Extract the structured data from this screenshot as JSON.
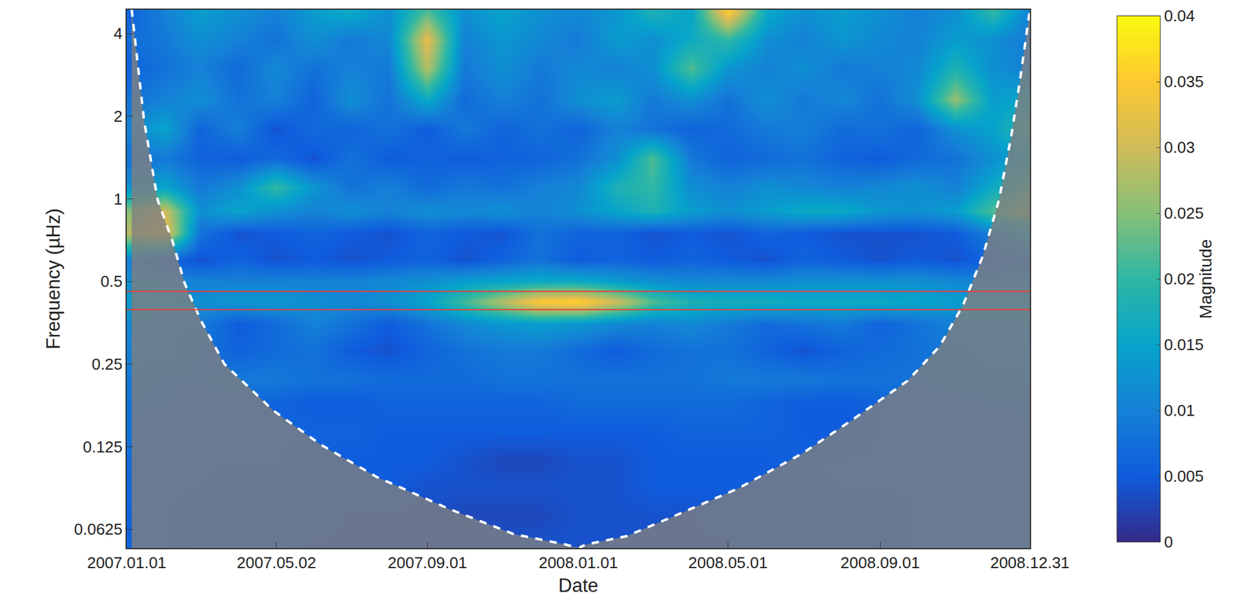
{
  "chart_data": {
    "type": "heatmap",
    "xlabel": "Date",
    "ylabel": "Frequency (µHz)",
    "log": "y",
    "grid": false,
    "xlim": [
      "2007-01-01",
      "2008-12-31"
    ],
    "xticks": [
      {
        "value": "2007-01-01",
        "label": "2007.01.01"
      },
      {
        "value": "2007-05-02",
        "label": "2007.05.02"
      },
      {
        "value": "2007-09-01",
        "label": "2007.09.01"
      },
      {
        "value": "2008-01-01",
        "label": "2008.01.01"
      },
      {
        "value": "2008-05-01",
        "label": "2008.05.01"
      },
      {
        "value": "2008-09-01",
        "label": "2008.09.01"
      },
      {
        "value": "2008-12-31",
        "label": "2008.12.31"
      }
    ],
    "ylim": [
      0.0534,
      4.89
    ],
    "yticks": [
      0.0625,
      0.125,
      0.25,
      0.5,
      1,
      2,
      4
    ],
    "colorbar": {
      "title": "Magnitude",
      "range": [
        0,
        0.04
      ],
      "ticks": [
        0,
        0.005,
        0.01,
        0.015,
        0.02,
        0.025,
        0.03,
        0.035,
        0.04
      ]
    },
    "x": [
      "2007-01-01",
      "2007-02-01",
      "2007-03-01",
      "2007-04-01",
      "2007-05-01",
      "2007-06-01",
      "2007-07-01",
      "2007-08-01",
      "2007-09-01",
      "2007-10-01",
      "2007-11-01",
      "2007-12-01",
      "2008-01-01",
      "2008-02-01",
      "2008-03-01",
      "2008-04-01",
      "2008-05-01",
      "2008-06-01",
      "2008-07-01",
      "2008-08-01",
      "2008-09-01",
      "2008-10-01",
      "2008-11-01",
      "2008-12-01",
      "2008-12-31"
    ],
    "y": [
      0.055,
      0.07,
      0.09,
      0.11,
      0.14,
      0.18,
      0.22,
      0.28,
      0.35,
      0.42,
      0.5,
      0.6,
      0.75,
      0.9,
      1.1,
      1.4,
      1.8,
      2.3,
      3,
      3.8,
      4.8
    ],
    "z": [
      [
        0.006,
        0.006,
        0.005,
        0.005,
        0.005,
        0.004,
        0.004,
        0.004,
        0.004,
        0.004,
        0.004,
        0.004,
        0.004,
        0.004,
        0.004,
        0.004,
        0.004,
        0.005,
        0.005,
        0.005,
        0.005,
        0.006,
        0.006,
        0.006,
        0.006
      ],
      [
        0.006,
        0.006,
        0.005,
        0.005,
        0.005,
        0.005,
        0.004,
        0.004,
        0.004,
        0.003,
        0.003,
        0.003,
        0.004,
        0.004,
        0.004,
        0.004,
        0.005,
        0.005,
        0.005,
        0.005,
        0.005,
        0.006,
        0.006,
        0.006,
        0.006
      ],
      [
        0.007,
        0.006,
        0.006,
        0.005,
        0.005,
        0.005,
        0.005,
        0.005,
        0.004,
        0.004,
        0.004,
        0.004,
        0.004,
        0.004,
        0.005,
        0.005,
        0.005,
        0.005,
        0.005,
        0.006,
        0.006,
        0.006,
        0.006,
        0.007,
        0.007
      ],
      [
        0.007,
        0.007,
        0.006,
        0.006,
        0.006,
        0.005,
        0.005,
        0.005,
        0.005,
        0.004,
        0.003,
        0.003,
        0.004,
        0.004,
        0.005,
        0.005,
        0.005,
        0.005,
        0.006,
        0.006,
        0.006,
        0.006,
        0.007,
        0.007,
        0.007
      ],
      [
        0.008,
        0.007,
        0.007,
        0.006,
        0.006,
        0.006,
        0.006,
        0.005,
        0.005,
        0.005,
        0.005,
        0.005,
        0.005,
        0.005,
        0.005,
        0.006,
        0.006,
        0.006,
        0.005,
        0.005,
        0.006,
        0.006,
        0.007,
        0.007,
        0.008
      ],
      [
        0.008,
        0.008,
        0.007,
        0.007,
        0.006,
        0.005,
        0.005,
        0.006,
        0.006,
        0.006,
        0.006,
        0.006,
        0.007,
        0.007,
        0.007,
        0.007,
        0.007,
        0.006,
        0.005,
        0.005,
        0.006,
        0.007,
        0.007,
        0.008,
        0.008
      ],
      [
        0.009,
        0.008,
        0.008,
        0.009,
        0.009,
        0.008,
        0.008,
        0.007,
        0.007,
        0.007,
        0.008,
        0.008,
        0.008,
        0.008,
        0.008,
        0.008,
        0.009,
        0.009,
        0.009,
        0.008,
        0.008,
        0.008,
        0.009,
        0.009,
        0.009
      ],
      [
        0.01,
        0.01,
        0.008,
        0.006,
        0.007,
        0.008,
        0.005,
        0.004,
        0.006,
        0.008,
        0.009,
        0.009,
        0.007,
        0.005,
        0.007,
        0.008,
        0.008,
        0.006,
        0.004,
        0.006,
        0.007,
        0.008,
        0.009,
        0.01,
        0.01
      ],
      [
        0.011,
        0.01,
        0.009,
        0.005,
        0.007,
        0.01,
        0.008,
        0.005,
        0.008,
        0.011,
        0.013,
        0.014,
        0.013,
        0.011,
        0.01,
        0.011,
        0.009,
        0.007,
        0.008,
        0.009,
        0.006,
        0.008,
        0.01,
        0.011,
        0.011
      ],
      [
        0.014,
        0.013,
        0.012,
        0.013,
        0.013,
        0.012,
        0.011,
        0.012,
        0.015,
        0.021,
        0.028,
        0.035,
        0.036,
        0.03,
        0.022,
        0.018,
        0.017,
        0.017,
        0.016,
        0.016,
        0.016,
        0.015,
        0.014,
        0.013,
        0.013
      ],
      [
        0.012,
        0.011,
        0.01,
        0.01,
        0.01,
        0.01,
        0.01,
        0.011,
        0.012,
        0.014,
        0.015,
        0.016,
        0.016,
        0.014,
        0.012,
        0.011,
        0.011,
        0.011,
        0.012,
        0.012,
        0.012,
        0.012,
        0.011,
        0.01,
        0.01
      ],
      [
        0.01,
        0.006,
        0.004,
        0.006,
        0.004,
        0.005,
        0.004,
        0.005,
        0.006,
        0.004,
        0.006,
        0.008,
        0.005,
        0.006,
        0.005,
        0.006,
        0.005,
        0.004,
        0.006,
        0.005,
        0.004,
        0.005,
        0.004,
        0.006,
        0.008
      ],
      [
        0.028,
        0.033,
        0.008,
        0.004,
        0.005,
        0.006,
        0.005,
        0.004,
        0.006,
        0.005,
        0.004,
        0.008,
        0.006,
        0.006,
        0.004,
        0.005,
        0.004,
        0.006,
        0.005,
        0.004,
        0.004,
        0.004,
        0.005,
        0.01,
        0.015
      ],
      [
        0.025,
        0.03,
        0.012,
        0.015,
        0.012,
        0.01,
        0.012,
        0.01,
        0.012,
        0.011,
        0.012,
        0.01,
        0.012,
        0.015,
        0.018,
        0.014,
        0.012,
        0.014,
        0.016,
        0.016,
        0.013,
        0.012,
        0.014,
        0.022,
        0.026
      ],
      [
        0.012,
        0.015,
        0.009,
        0.012,
        0.02,
        0.013,
        0.008,
        0.01,
        0.007,
        0.009,
        0.008,
        0.01,
        0.011,
        0.018,
        0.02,
        0.012,
        0.01,
        0.012,
        0.011,
        0.01,
        0.011,
        0.012,
        0.01,
        0.016,
        0.022
      ],
      [
        0.008,
        0.009,
        0.006,
        0.005,
        0.007,
        0.004,
        0.008,
        0.005,
        0.006,
        0.005,
        0.006,
        0.006,
        0.008,
        0.012,
        0.022,
        0.009,
        0.006,
        0.007,
        0.008,
        0.006,
        0.005,
        0.007,
        0.008,
        0.012,
        0.016
      ],
      [
        0.01,
        0.015,
        0.006,
        0.01,
        0.004,
        0.007,
        0.006,
        0.008,
        0.005,
        0.009,
        0.006,
        0.008,
        0.006,
        0.01,
        0.008,
        0.006,
        0.007,
        0.009,
        0.01,
        0.007,
        0.008,
        0.006,
        0.012,
        0.015,
        0.02
      ],
      [
        0.008,
        0.01,
        0.012,
        0.008,
        0.01,
        0.006,
        0.012,
        0.008,
        0.016,
        0.007,
        0.01,
        0.008,
        0.012,
        0.014,
        0.009,
        0.012,
        0.008,
        0.012,
        0.009,
        0.011,
        0.008,
        0.012,
        0.026,
        0.014,
        0.016
      ],
      [
        0.006,
        0.008,
        0.01,
        0.007,
        0.011,
        0.008,
        0.01,
        0.009,
        0.028,
        0.009,
        0.012,
        0.009,
        0.011,
        0.01,
        0.012,
        0.022,
        0.013,
        0.01,
        0.012,
        0.009,
        0.01,
        0.011,
        0.018,
        0.012,
        0.01
      ],
      [
        0.007,
        0.009,
        0.012,
        0.01,
        0.008,
        0.012,
        0.009,
        0.011,
        0.032,
        0.01,
        0.013,
        0.011,
        0.009,
        0.014,
        0.012,
        0.016,
        0.02,
        0.012,
        0.01,
        0.013,
        0.011,
        0.01,
        0.014,
        0.012,
        0.009
      ],
      [
        0.006,
        0.01,
        0.014,
        0.012,
        0.01,
        0.014,
        0.016,
        0.012,
        0.022,
        0.012,
        0.015,
        0.012,
        0.011,
        0.013,
        0.018,
        0.015,
        0.035,
        0.016,
        0.012,
        0.014,
        0.012,
        0.01,
        0.012,
        0.02,
        0.01
      ]
    ],
    "coi": {
      "x": [
        "2007-01-05",
        "2007-01-15",
        "2007-01-26",
        "2007-02-07",
        "2007-02-17",
        "2007-03-02",
        "2007-03-21",
        "2007-04-29",
        "2007-06-07",
        "2007-07-22",
        "2007-09-19",
        "2007-11-10",
        "2007-12-22",
        "2008-01-01",
        "2008-01-07",
        "2008-02-09",
        "2008-03-19",
        "2008-05-09",
        "2008-06-30",
        "2008-08-08",
        "2008-09-23",
        "2008-10-19",
        "2008-11-07",
        "2008-11-23",
        "2008-12-06",
        "2008-12-16",
        "2008-12-23",
        "2008-12-31"
      ],
      "y": [
        4.9,
        1.93,
        0.99,
        0.7,
        0.49,
        0.36,
        0.25,
        0.17,
        0.127,
        0.097,
        0.074,
        0.06,
        0.055,
        0.0534,
        0.055,
        0.059,
        0.07,
        0.088,
        0.118,
        0.155,
        0.217,
        0.29,
        0.41,
        0.62,
        0.99,
        1.7,
        2.7,
        4.9
      ]
    },
    "hlines": [
      0.46,
      0.395
    ]
  }
}
